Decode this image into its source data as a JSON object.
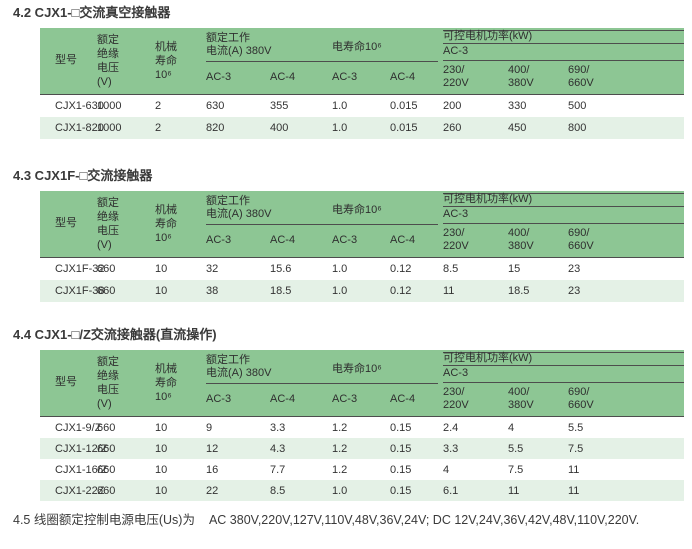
{
  "colors": {
    "header_green": "#8dc694",
    "row_alt_green": "#e4f1e6",
    "rule_line": "#4d4d4d",
    "text": "#333333"
  },
  "header": {
    "model": "型号",
    "insulation": "额定\n绝缘\n电压\n(V)",
    "mech_life": "机械\n寿命\n10⁶",
    "working_current": "额定工作\n电流(A) 380V",
    "elec_life": "电寿命10⁶",
    "ac3": "AC-3",
    "ac4": "AC-4",
    "motor_power": "可控电机功率(kW)",
    "v230": "230/\n220V",
    "v400": "400/\n380V",
    "v690": "690/\n660V"
  },
  "tables": [
    {
      "title": "4.2 CJX1-□交流真空接触器",
      "rows": [
        [
          "CJX1-630",
          "1000",
          "2",
          "630",
          "355",
          "1.0",
          "0.015",
          "200",
          "330",
          "500"
        ],
        [
          "CJX1-820",
          "1000",
          "2",
          "820",
          "400",
          "1.0",
          "0.015",
          "260",
          "450",
          "800"
        ]
      ]
    },
    {
      "title": "4.3 CJX1F-□交流接触器",
      "rows": [
        [
          "CJX1F-32",
          "660",
          "10",
          "32",
          "15.6",
          "1.0",
          "0.12",
          "8.5",
          "15",
          "23"
        ],
        [
          "CJX1F-38",
          "660",
          "10",
          "38",
          "18.5",
          "1.0",
          "0.12",
          "11",
          "18.5",
          "23"
        ]
      ]
    },
    {
      "title": "4.4 CJX1-□/Z交流接触器(直流操作)",
      "rows": [
        [
          "CJX1-9/Z",
          "660",
          "10",
          "9",
          "3.3",
          "1.2",
          "0.15",
          "2.4",
          "4",
          "5.5"
        ],
        [
          "CJX1-12/Z",
          "660",
          "10",
          "12",
          "4.3",
          "1.2",
          "0.15",
          "3.3",
          "5.5",
          "7.5"
        ],
        [
          "CJX1-16/Z",
          "660",
          "10",
          "16",
          "7.7",
          "1.2",
          "0.15",
          "4",
          "7.5",
          "11"
        ],
        [
          "CJX1-22Z",
          "660",
          "10",
          "22",
          "8.5",
          "1.0",
          "0.15",
          "6.1",
          "11",
          "11"
        ]
      ]
    }
  ],
  "footer": {
    "label": "4.5 线圈额定控制电源电压(Us)为",
    "values": "AC 380V,220V,127V,110V,48V,36V,24V; DC 12V,24V,36V,42V,48V,110V,220V."
  }
}
